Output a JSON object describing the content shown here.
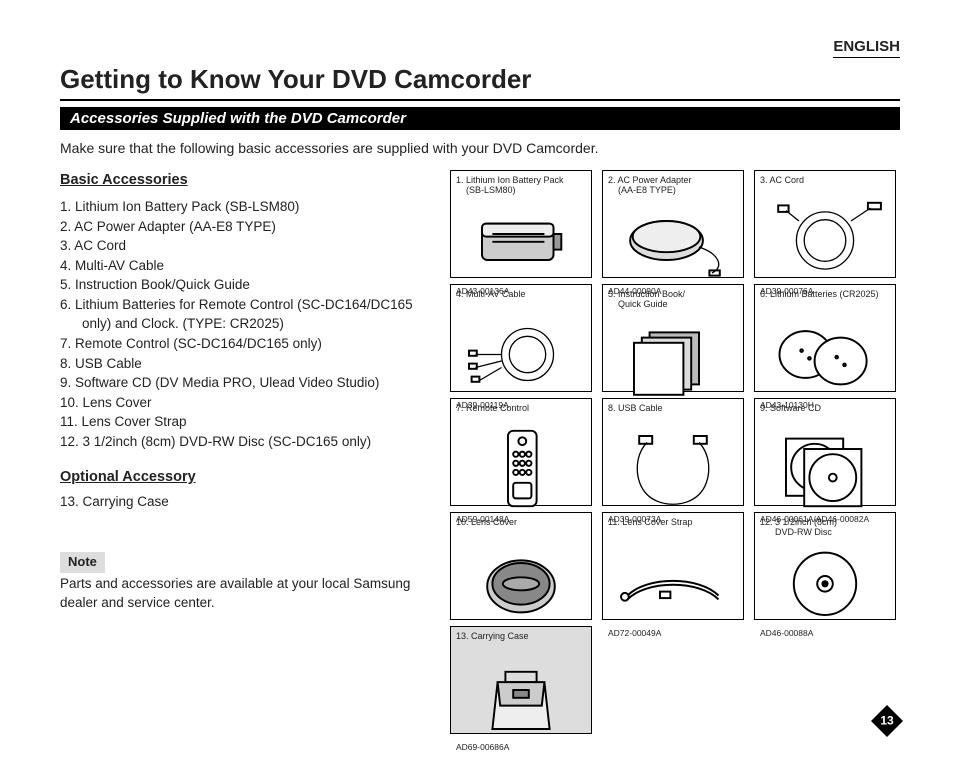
{
  "language_label": "ENGLISH",
  "title": "Getting to Know Your DVD Camcorder",
  "section_heading": "Accessories Supplied with the DVD Camcorder",
  "intro": "Make sure that the following basic accessories are supplied with your DVD Camcorder.",
  "basic_heading": "Basic Accessories",
  "basic_items": [
    "1.  Lithium Ion Battery Pack (SB-LSM80)",
    "2.  AC Power Adapter (AA-E8 TYPE)",
    "3.  AC Cord",
    "4.  Multi-AV Cable",
    "5.  Instruction Book/Quick Guide",
    "6.  Lithium Batteries for Remote Control (SC-DC164/DC165 only) and Clock. (TYPE: CR2025)",
    "7.  Remote Control (SC-DC164/DC165 only)",
    "8.  USB Cable",
    "9.  Software CD (DV Media PRO, Ulead Video Studio)",
    "10. Lens Cover",
    "11. Lens Cover Strap",
    "12. 3 1/2inch (8cm) DVD-RW Disc (SC-DC165 only)"
  ],
  "optional_heading": "Optional Accessory",
  "optional_items": [
    "13. Carrying Case"
  ],
  "note_label": "Note",
  "note_text": "Parts and accessories are available at your local Samsung dealer and service center.",
  "cells": [
    {
      "title": "1. Lithium Ion Battery Pack\n    (SB-LSM80)",
      "part": "AD43-00136A",
      "icon": "battery"
    },
    {
      "title": "2. AC Power Adapter\n    (AA-E8 TYPE)",
      "part": "AD44-00090A",
      "icon": "adapter"
    },
    {
      "title": "3. AC Cord",
      "part": "AD39-00076A",
      "icon": "accord"
    },
    {
      "title": "4. Multi-AV Cable",
      "part": "AD39-00119A",
      "icon": "avcable"
    },
    {
      "title": "5. Instruction Book/\n    Quick Guide",
      "part": "",
      "icon": "book"
    },
    {
      "title": "6. Lithium Batteries (CR2025)",
      "part": "AD43-10130H",
      "icon": "coins"
    },
    {
      "title": "7. Remote Control",
      "part": "AD59-00148A",
      "icon": "remote"
    },
    {
      "title": "8. USB Cable",
      "part": "AD39-00073A",
      "icon": "usb"
    },
    {
      "title": "9. Software CD",
      "part": "AD46-00061A/AD46-00082A",
      "icon": "cds"
    },
    {
      "title": "10. Lens Cover",
      "part": "AD97-10990A",
      "icon": "lenscover"
    },
    {
      "title": "11. Lens Cover Strap",
      "part": "AD72-00049A",
      "icon": "strap"
    },
    {
      "title": "12. 3 1/2inch (8cm)\n      DVD-RW Disc",
      "part": "AD46-00088A",
      "icon": "disc"
    },
    {
      "title": "13. Carrying Case",
      "part": "AD69-00686A",
      "icon": "case",
      "shaded": true
    }
  ],
  "page_number": "13",
  "colors": {
    "text": "#222222",
    "bar_bg": "#000000",
    "bar_text": "#ffffff",
    "note_bg": "#dddddd",
    "shaded_bg": "#dddddd",
    "border": "#000000"
  }
}
